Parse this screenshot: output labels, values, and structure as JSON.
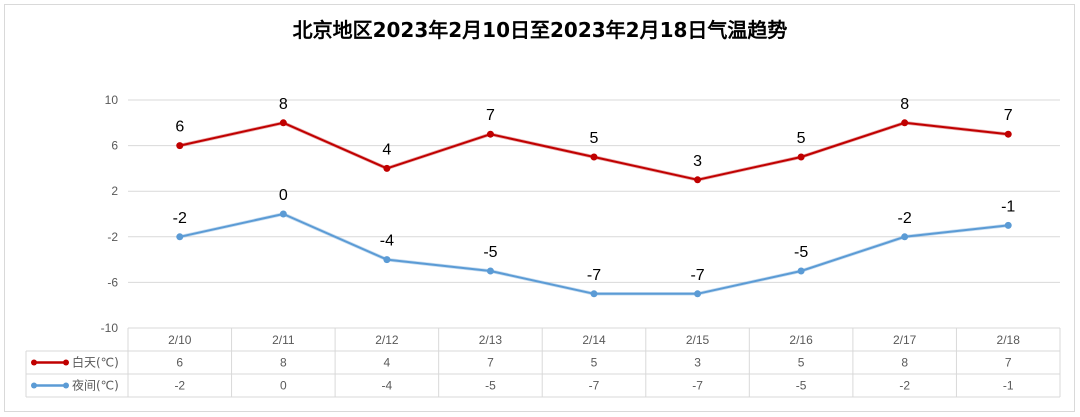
{
  "chart_data": {
    "type": "line",
    "title": "北京地区2023年2月10日至2023年2月18日气温趋势",
    "categories": [
      "2/10",
      "2/11",
      "2/12",
      "2/13",
      "2/14",
      "2/15",
      "2/16",
      "2/17",
      "2/18"
    ],
    "series": [
      {
        "name": "白天(℃)",
        "values": [
          6,
          8,
          4,
          7,
          5,
          3,
          5,
          8,
          7
        ],
        "color": "#c00000"
      },
      {
        "name": "夜间(℃)",
        "values": [
          -2,
          0,
          -4,
          -5,
          -7,
          -7,
          -5,
          -2,
          -1
        ],
        "color": "#5b9bd5"
      }
    ],
    "yticks": [
      10,
      6,
      2,
      -2,
      -6,
      -10
    ],
    "ylim": [
      -10,
      10
    ],
    "grid": true,
    "data_table": true,
    "legend": "data-table"
  }
}
